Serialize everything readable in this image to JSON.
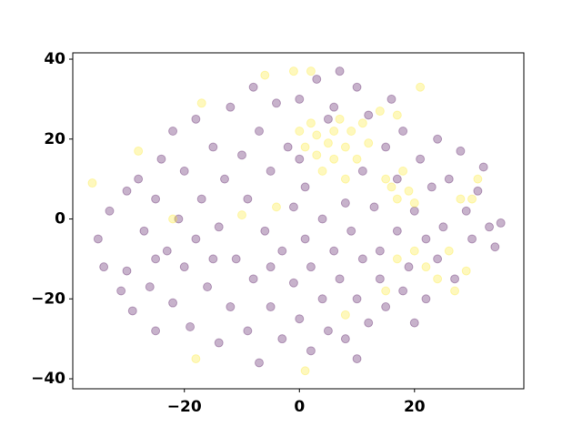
{
  "chart_data": {
    "type": "scatter",
    "xlim": [
      -39.4,
      39.0
    ],
    "ylim": [
      -42.5,
      41.6
    ],
    "xticks": [
      {
        "value": -20,
        "label": "−20"
      },
      0,
      20
    ],
    "yticks": [
      {
        "value": -40,
        "label": "−40"
      },
      {
        "value": -20,
        "label": "−20"
      },
      0,
      20,
      40
    ],
    "alpha": 0.3,
    "series": [
      {
        "color": "#440154",
        "x": [
          -35,
          -34,
          -33,
          -31,
          -30,
          -30,
          -29,
          -28,
          -27,
          -26,
          -25,
          -25,
          -24,
          -23,
          -22,
          -22,
          -21,
          -20,
          -20,
          -19,
          -18,
          -18,
          -17,
          -16,
          -15,
          -14,
          -14,
          -13,
          -12,
          -12,
          -11,
          -10,
          -9,
          -9,
          -8,
          -8,
          -7,
          -7,
          -6,
          -5,
          -5,
          -4,
          -3,
          -3,
          -2,
          -1,
          -1,
          0,
          0,
          1,
          1,
          2,
          2,
          3,
          4,
          4,
          5,
          6,
          6,
          7,
          7,
          8,
          8,
          9,
          10,
          10,
          11,
          11,
          12,
          12,
          13,
          14,
          14,
          15,
          15,
          16,
          17,
          17,
          18,
          18,
          19,
          20,
          20,
          21,
          22,
          22,
          23,
          24,
          24,
          25,
          26,
          27,
          28,
          29,
          30,
          31,
          32,
          33,
          34,
          35,
          5,
          -15,
          -25,
          0,
          10,
          -5
        ],
        "values": [
          -5,
          -12,
          2,
          -18,
          -13,
          7,
          -23,
          10,
          -3,
          -17,
          5,
          -28,
          15,
          -8,
          -21,
          22,
          0,
          -12,
          12,
          -27,
          -5,
          25,
          5,
          -17,
          18,
          -31,
          -2,
          10,
          -22,
          28,
          -10,
          16,
          -28,
          5,
          -15,
          33,
          -36,
          22,
          -3,
          12,
          -22,
          29,
          -8,
          -30,
          18,
          3,
          -16,
          -25,
          30,
          -5,
          8,
          -33,
          -12,
          35,
          0,
          -20,
          -28,
          -8,
          28,
          -15,
          37,
          4,
          -30,
          -3,
          33,
          -20,
          12,
          -10,
          -26,
          26,
          3,
          -15,
          -8,
          18,
          -22,
          30,
          -3,
          10,
          -18,
          22,
          -12,
          2,
          -26,
          15,
          -5,
          -20,
          8,
          20,
          -10,
          -2,
          10,
          -15,
          17,
          2,
          -5,
          7,
          13,
          -2,
          -7,
          -1,
          25,
          -10,
          -10,
          15,
          -35,
          -12
        ]
      },
      {
        "color": "#fde725",
        "x": [
          -36,
          -28,
          -17,
          -10,
          -18,
          1,
          -6,
          -1,
          2,
          0,
          1,
          2,
          3,
          3,
          4,
          5,
          6,
          6,
          7,
          8,
          9,
          8,
          10,
          11,
          12,
          14,
          15,
          16,
          17,
          18,
          19,
          20,
          17,
          21,
          15,
          17,
          20,
          22,
          24,
          26,
          29,
          27,
          28,
          30,
          31,
          8,
          -22,
          -4
        ],
        "values": [
          9,
          17,
          29,
          1,
          -35,
          -38,
          36,
          37,
          37,
          22,
          18,
          24,
          16,
          21,
          12,
          19,
          22,
          15,
          25,
          18,
          22,
          10,
          15,
          24,
          19,
          27,
          10,
          8,
          5,
          12,
          7,
          4,
          26,
          33,
          -18,
          -10,
          -8,
          -12,
          -15,
          -8,
          -13,
          -18,
          5,
          5,
          10,
          -24,
          0,
          3
        ]
      }
    ]
  }
}
